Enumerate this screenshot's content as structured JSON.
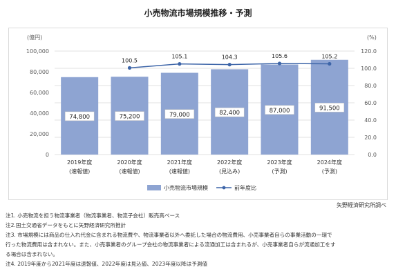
{
  "title": "小売物流市場規模推移・予測",
  "source": "矢野経済研究所調べ",
  "notes": [
    "注1. 小売物流を担う物流事業者（物流事業者、物流子会社）販売高ベース",
    "注2.国土交通省データをもとに矢野経済研究所推計",
    "注3. 市場規模には商品の仕入れ代金に含まれる物流費や、物流事業者以外へ委託した場合の物流費用、小売事業者自らの事業活動の一環で",
    "行った物流費用は含まれない。また、小売事業者のグループ会社の物流事業者による流通加工は含まれるが、小売事業者自らが流通加工をす",
    "る場合は含まれない。",
    "注4. 2019年度から2021年度は速報値、2022年度は見込値、2023年度以降は予測値"
  ],
  "chart_data": {
    "type": "bar",
    "categories": [
      [
        "2019年度",
        "(速報値)"
      ],
      [
        "2020年度",
        "(速報値)"
      ],
      [
        "2021年度",
        "(速報値)"
      ],
      [
        "2022年度",
        "(見込み)"
      ],
      [
        "2023年度",
        "(予測)"
      ],
      [
        "2024年度",
        "(予測)"
      ]
    ],
    "left_axis": {
      "unit": "(億円)",
      "range": [
        0,
        100000
      ],
      "ticks": [
        "0",
        "20,000",
        "40,000",
        "60,000",
        "80,000",
        "100,000"
      ]
    },
    "right_axis": {
      "unit": "(%)",
      "range": [
        0,
        120
      ],
      "ticks": [
        "0.0",
        "20.0",
        "40.0",
        "60.0",
        "80.0",
        "100.0",
        "120.0"
      ]
    },
    "series": [
      {
        "name": "小売物流市場規模",
        "type": "bar",
        "axis": "left",
        "values": [
          74800,
          75200,
          79000,
          82400,
          87000,
          91500
        ],
        "labels": [
          "74,800",
          "75,200",
          "79,000",
          "82,400",
          "87,000",
          "91,500"
        ]
      },
      {
        "name": "前年度比",
        "type": "line",
        "axis": "right",
        "values": [
          null,
          100.5,
          105.1,
          104.3,
          105.6,
          105.2
        ],
        "labels": [
          "",
          "100.5",
          "105.1",
          "104.3",
          "105.6",
          "105.2"
        ]
      }
    ],
    "colors": {
      "bar": "#8ea4d2",
      "line": "#3d65a8",
      "grid": "#d9d9d9",
      "label_box": "#ffffff"
    },
    "grid": true,
    "legend": "bottom-center"
  }
}
